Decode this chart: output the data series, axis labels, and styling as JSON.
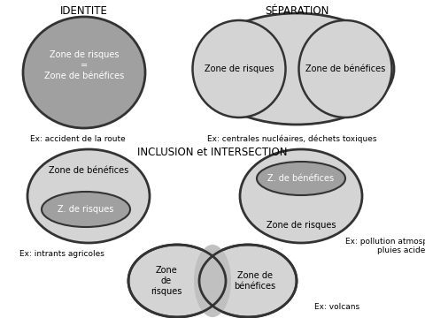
{
  "background_color": "#ffffff",
  "title_identite": "IDENTITE",
  "title_separation": "SÉPARATION",
  "title_inclusion": "INCLUSION et INTERSECTION",
  "ex_identite": "Ex: accident de la route",
  "ex_separation": "Ex: centrales nucléaires, déchets toxiques",
  "ex_inclusion1": "Ex: intrants agricoles",
  "ex_inclusion2": "Ex: pollution atmosphérique,\npluies acides",
  "ex_intersection": "Ex: volcans",
  "color_dark_gray": "#a0a0a0",
  "color_light_gray": "#d4d4d4",
  "color_mid_gray": "#c0c0c0",
  "edge_color": "#333333",
  "text_dark": "#333333",
  "font_size_title": 8.5,
  "font_size_label": 7,
  "font_size_ex": 6.5
}
